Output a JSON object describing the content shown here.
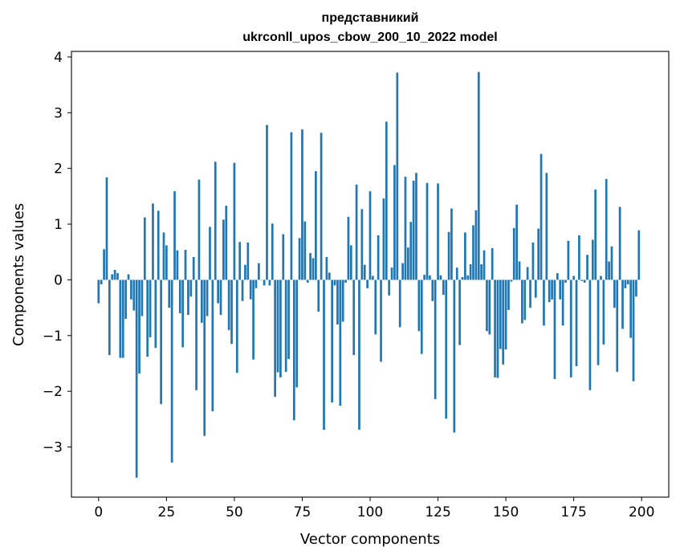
{
  "chart_data": {
    "type": "bar",
    "title_lines": [
      "представникий",
      "ukrconll_upos_cbow_200_10_2022 model"
    ],
    "xlabel": "Vector components",
    "ylabel": "Components values",
    "xlim": [
      -10,
      210
    ],
    "ylim": [
      -3.9,
      4.1
    ],
    "xticks": [
      0,
      25,
      50,
      75,
      100,
      125,
      150,
      175,
      200
    ],
    "yticks": [
      -3,
      -2,
      -1,
      0,
      1,
      2,
      3,
      4
    ],
    "yticklabels": [
      "−3",
      "−2",
      "−1",
      "0",
      "1",
      "2",
      "3",
      "4"
    ],
    "bar_color": "#1f77b4",
    "grid": false,
    "x": [
      0,
      1,
      2,
      3,
      4,
      5,
      6,
      7,
      8,
      9,
      10,
      11,
      12,
      13,
      14,
      15,
      16,
      17,
      18,
      19,
      20,
      21,
      22,
      23,
      24,
      25,
      26,
      27,
      28,
      29,
      30,
      31,
      32,
      33,
      34,
      35,
      36,
      37,
      38,
      39,
      40,
      41,
      42,
      43,
      44,
      45,
      46,
      47,
      48,
      49,
      50,
      51,
      52,
      53,
      54,
      55,
      56,
      57,
      58,
      59,
      60,
      61,
      62,
      63,
      64,
      65,
      66,
      67,
      68,
      69,
      70,
      71,
      72,
      73,
      74,
      75,
      76,
      77,
      78,
      79,
      80,
      81,
      82,
      83,
      84,
      85,
      86,
      87,
      88,
      89,
      90,
      91,
      92,
      93,
      94,
      95,
      96,
      97,
      98,
      99,
      100,
      101,
      102,
      103,
      104,
      105,
      106,
      107,
      108,
      109,
      110,
      111,
      112,
      113,
      114,
      115,
      116,
      117,
      118,
      119,
      120,
      121,
      122,
      123,
      124,
      125,
      126,
      127,
      128,
      129,
      130,
      131,
      132,
      133,
      134,
      135,
      136,
      137,
      138,
      139,
      140,
      141,
      142,
      143,
      144,
      145,
      146,
      147,
      148,
      149,
      150,
      151,
      152,
      153,
      154,
      155,
      156,
      157,
      158,
      159,
      160,
      161,
      162,
      163,
      164,
      165,
      166,
      167,
      168,
      169,
      170,
      171,
      172,
      173,
      174,
      175,
      176,
      177,
      178,
      179,
      180,
      181,
      182,
      183,
      184,
      185,
      186,
      187,
      188,
      189,
      190,
      191,
      192,
      193,
      194,
      195,
      196,
      197,
      198,
      199
    ],
    "values": [
      -0.42,
      -0.08,
      0.55,
      1.84,
      -1.35,
      0.1,
      0.18,
      0.12,
      -1.4,
      -1.4,
      -0.7,
      0.1,
      -0.35,
      -0.55,
      -3.55,
      -1.68,
      -0.65,
      1.12,
      -1.38,
      -1.03,
      1.37,
      -1.22,
      1.24,
      -2.23,
      0.85,
      0.62,
      -0.5,
      -3.28,
      1.59,
      0.53,
      -0.6,
      -1.21,
      0.54,
      -0.63,
      -0.3,
      0.41,
      -1.98,
      1.8,
      -0.77,
      -2.8,
      -0.65,
      0.95,
      -2.36,
      2.12,
      -0.42,
      -0.63,
      1.08,
      1.33,
      -0.9,
      -1.15,
      2.1,
      -1.67,
      0.68,
      -0.38,
      0.27,
      0.67,
      -0.35,
      -1.43,
      -0.15,
      0.3,
      0.0,
      -0.1,
      2.78,
      -0.1,
      1.01,
      -2.1,
      -1.66,
      -1.75,
      0.82,
      -1.65,
      -1.42,
      2.65,
      -2.52,
      -1.93,
      0.75,
      2.7,
      1.05,
      -0.05,
      0.48,
      0.39,
      1.95,
      -0.57,
      2.64,
      -2.69,
      0.41,
      0.13,
      -2.2,
      -0.1,
      -0.8,
      -2.26,
      -0.75,
      -0.05,
      1.13,
      0.62,
      -1.35,
      1.71,
      -2.69,
      1.27,
      0.27,
      -0.15,
      1.59,
      0.07,
      -0.98,
      0.8,
      -1.47,
      1.46,
      2.84,
      -0.28,
      0.22,
      2.06,
      3.72,
      -0.85,
      0.3,
      1.85,
      0.58,
      1.04,
      1.78,
      1.92,
      -0.92,
      -1.33,
      0.09,
      1.74,
      0.08,
      -0.38,
      -2.14,
      1.73,
      0.08,
      -0.27,
      -2.49,
      0.86,
      1.28,
      -2.74,
      0.22,
      -1.17,
      0.05,
      0.85,
      0.08,
      0.28,
      0.98,
      1.25,
      3.73,
      0.28,
      0.53,
      -0.92,
      -0.98,
      0.57,
      -1.75,
      -1.76,
      -1.24,
      -1.52,
      -1.25,
      -0.54,
      -0.03,
      0.93,
      1.35,
      0.33,
      -0.78,
      -0.72,
      0.23,
      -0.5,
      0.67,
      -0.32,
      0.92,
      2.26,
      -0.82,
      1.92,
      -0.4,
      -0.35,
      -1.78,
      0.12,
      -0.35,
      -0.82,
      -0.05,
      0.7,
      -1.75,
      0.07,
      -1.55,
      0.8,
      -0.02,
      -0.05,
      0.45,
      -1.98,
      0.72,
      1.62,
      -1.53,
      0.07,
      -1.16,
      1.81,
      0.33,
      0.6,
      -0.5,
      -1.65,
      1.31,
      -0.88,
      -0.15,
      -0.08,
      -1.04,
      -1.82,
      -0.3,
      0.89
    ]
  }
}
